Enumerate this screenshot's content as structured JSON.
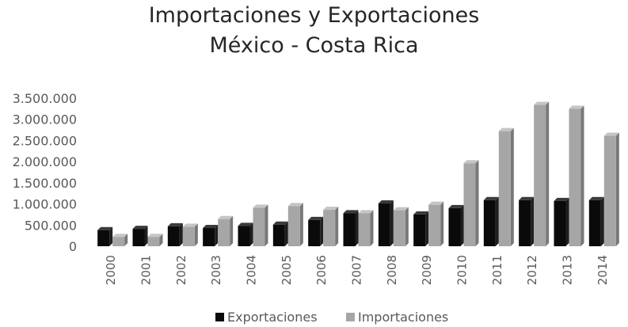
{
  "chart_data": {
    "type": "bar",
    "title": "Importaciones y Exportaciones",
    "subtitle": "México - Costa Rica",
    "categories": [
      "2000",
      "2001",
      "2002",
      "2003",
      "2004",
      "2005",
      "2006",
      "2007",
      "2008",
      "2009",
      "2010",
      "2011",
      "2012",
      "2013",
      "2014"
    ],
    "series": [
      {
        "name": "Exportaciones",
        "color": "#0a0a0a",
        "values": [
          380000,
          410000,
          470000,
          430000,
          480000,
          510000,
          620000,
          780000,
          1010000,
          750000,
          900000,
          1090000,
          1090000,
          1070000,
          1090000
        ]
      },
      {
        "name": "Importaciones",
        "color": "#a6a6a6",
        "values": [
          220000,
          220000,
          460000,
          640000,
          910000,
          950000,
          860000,
          780000,
          850000,
          980000,
          1960000,
          2720000,
          3340000,
          3250000,
          2610000
        ]
      }
    ],
    "ylim": [
      0,
      3500000
    ],
    "yticks": [
      "0",
      "500.000",
      "1.000.000",
      "1.500.000",
      "2.000.000",
      "2.500.000",
      "3.000.000",
      "3.500.000"
    ],
    "ytick_values": [
      0,
      500000,
      1000000,
      1500000,
      2000000,
      2500000,
      3000000,
      3500000
    ],
    "grid": false,
    "legend_position": "bottom",
    "style": "3d-clustered-column"
  }
}
